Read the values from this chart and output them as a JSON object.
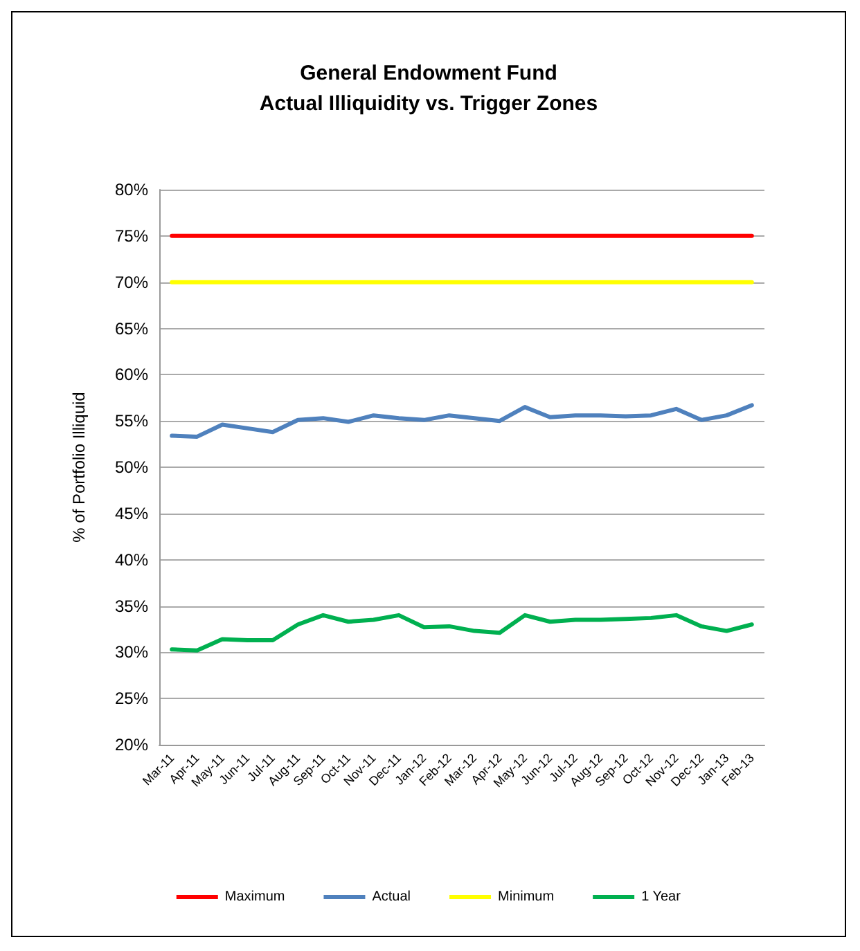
{
  "chart_data": {
    "type": "line",
    "title": "General Endowment Fund\nActual Illiquidity vs. Trigger Zones",
    "ylabel": "% of Portfolio Illiquid",
    "categories": [
      "Mar-11",
      "Apr-11",
      "May-11",
      "Jun-11",
      "Jul-11",
      "Aug-11",
      "Sep-11",
      "Oct-11",
      "Nov-11",
      "Dec-11",
      "Jan-12",
      "Feb-12",
      "Mar-12",
      "Apr-12",
      "May-12",
      "Jun-12",
      "Jul-12",
      "Aug-12",
      "Sep-12",
      "Oct-12",
      "Nov-12",
      "Dec-12",
      "Jan-13",
      "Feb-13"
    ],
    "series": [
      {
        "name": "Maximum",
        "color": "#ff0000",
        "values": [
          75,
          75,
          75,
          75,
          75,
          75,
          75,
          75,
          75,
          75,
          75,
          75,
          75,
          75,
          75,
          75,
          75,
          75,
          75,
          75,
          75,
          75,
          75,
          75
        ]
      },
      {
        "name": "Actual",
        "color": "#4f81bd",
        "values": [
          53.4,
          53.3,
          54.6,
          54.2,
          53.8,
          55.1,
          55.3,
          54.9,
          55.6,
          55.3,
          55.1,
          55.6,
          55.3,
          55.0,
          56.5,
          55.4,
          55.6,
          55.6,
          55.5,
          55.6,
          56.3,
          55.1,
          55.6,
          56.7
        ]
      },
      {
        "name": "Minimum",
        "color": "#ffff00",
        "values": [
          70,
          70,
          70,
          70,
          70,
          70,
          70,
          70,
          70,
          70,
          70,
          70,
          70,
          70,
          70,
          70,
          70,
          70,
          70,
          70,
          70,
          70,
          70,
          70
        ]
      },
      {
        "name": "1 Year",
        "color": "#00b050",
        "values": [
          30.3,
          30.2,
          31.4,
          31.3,
          31.3,
          33.0,
          34.0,
          33.3,
          33.5,
          34.0,
          32.7,
          32.8,
          32.3,
          32.1,
          34.0,
          33.3,
          33.5,
          33.5,
          33.6,
          33.7,
          34.0,
          32.8,
          32.3,
          33.0
        ]
      }
    ],
    "ylim": [
      20,
      80
    ],
    "yticks": [
      {
        "value": 20,
        "label": "20%"
      },
      {
        "value": 25,
        "label": "25%"
      },
      {
        "value": 30,
        "label": "30%"
      },
      {
        "value": 35,
        "label": "35%"
      },
      {
        "value": 40,
        "label": "40%"
      },
      {
        "value": 45,
        "label": "45%"
      },
      {
        "value": 50,
        "label": "50%"
      },
      {
        "value": 55,
        "label": "55%"
      },
      {
        "value": 60,
        "label": "60%"
      },
      {
        "value": 65,
        "label": "65%"
      },
      {
        "value": 70,
        "label": "70%"
      },
      {
        "value": 75,
        "label": "75%"
      },
      {
        "value": 80,
        "label": "80%"
      }
    ],
    "grid": "y",
    "legend": "bottom",
    "marker": "none",
    "line_style": "solid"
  }
}
